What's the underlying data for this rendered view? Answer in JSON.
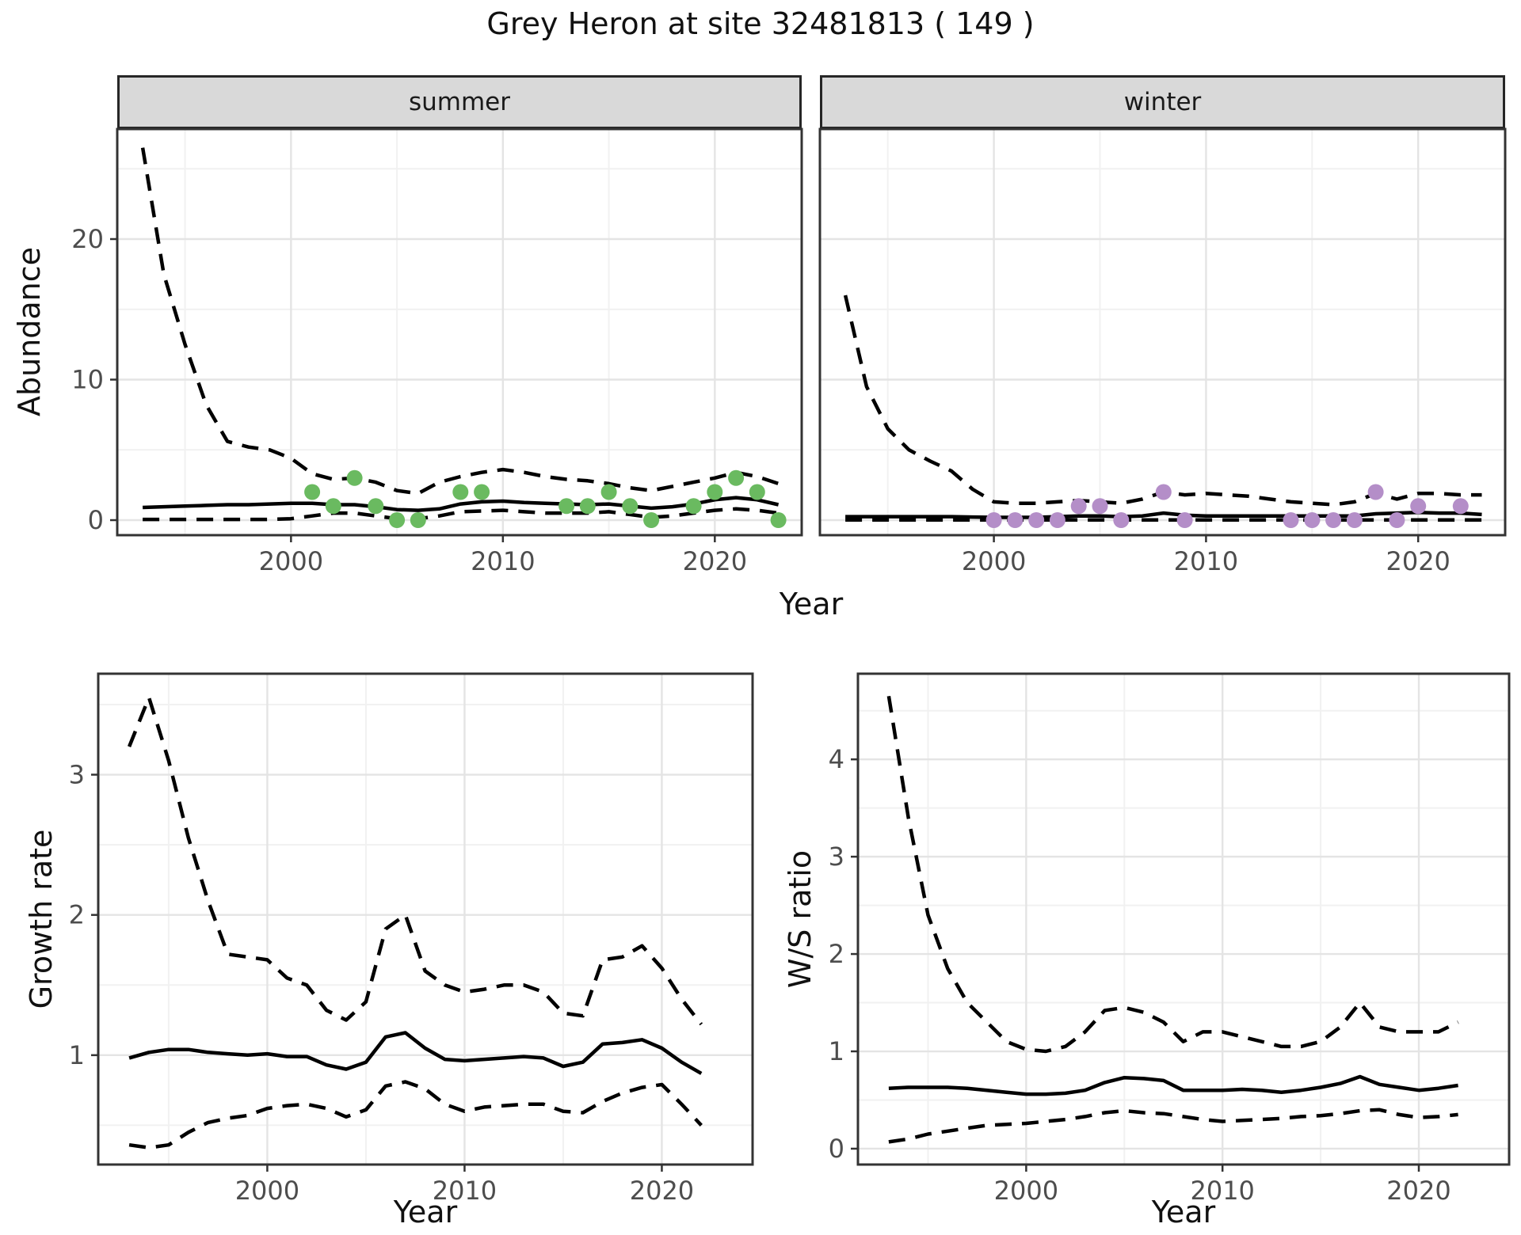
{
  "title": "Grey Heron at site 32481813 ( 149 )",
  "colors": {
    "summer_points": "#6aba60",
    "winter_points": "#b48ec8",
    "line": "#000000",
    "tick_label": "#4d4d4d",
    "axis_tick": "#333333",
    "panel_border": "#333333",
    "strip_bg": "#d9d9d9",
    "grid_major": "#e4e4e4",
    "grid_minor": "#f1f1f1",
    "background": "#ffffff"
  },
  "chart_data": [
    {
      "id": "abundance-summer",
      "type": "line",
      "facet_label": "summer",
      "xlabel": "Year",
      "ylabel": "Abundance",
      "xlim": [
        1991.8,
        2024.1
      ],
      "ylim": [
        -1.07,
        27.83
      ],
      "x_major_ticks": [
        2000,
        2010,
        2020
      ],
      "x_minor_ticks": [
        1995,
        2005,
        2015
      ],
      "x_tick_labels": [
        "2000",
        "2010",
        "2020"
      ],
      "y_major_ticks": [
        0,
        10,
        20
      ],
      "y_minor_ticks": [
        5,
        15,
        25
      ],
      "y_tick_labels": [
        "0",
        "10",
        "20"
      ],
      "show_y_axis": true,
      "grid": true,
      "legend": "none",
      "x": [
        1993,
        1994,
        1995,
        1996,
        1997,
        1998,
        1999,
        2000,
        2001,
        2002,
        2003,
        2004,
        2005,
        2006,
        2007,
        2008,
        2009,
        2010,
        2011,
        2012,
        2013,
        2014,
        2015,
        2016,
        2017,
        2018,
        2019,
        2020,
        2021,
        2022,
        2023
      ],
      "series": [
        {
          "name": "upper 95% CI",
          "style": "dashed",
          "values": [
            26.5,
            17.5,
            12.5,
            8.2,
            5.6,
            5.2,
            5.0,
            4.4,
            3.3,
            2.9,
            3.0,
            2.7,
            2.1,
            1.9,
            2.7,
            3.1,
            3.4,
            3.6,
            3.4,
            3.1,
            2.9,
            2.8,
            2.6,
            2.3,
            2.1,
            2.4,
            2.7,
            3.0,
            3.4,
            3.1,
            2.6
          ]
        },
        {
          "name": "median",
          "style": "solid",
          "values": [
            0.9,
            0.95,
            1.0,
            1.05,
            1.1,
            1.1,
            1.15,
            1.2,
            1.2,
            1.1,
            1.1,
            0.95,
            0.75,
            0.7,
            0.8,
            1.15,
            1.3,
            1.35,
            1.25,
            1.2,
            1.15,
            1.1,
            1.15,
            1.0,
            0.85,
            0.95,
            1.15,
            1.45,
            1.6,
            1.45,
            1.1
          ]
        },
        {
          "name": "lower 95% CI",
          "style": "dashed",
          "values": [
            0.05,
            0.05,
            0.05,
            0.05,
            0.05,
            0.05,
            0.05,
            0.1,
            0.3,
            0.5,
            0.5,
            0.3,
            0.1,
            0.1,
            0.3,
            0.6,
            0.65,
            0.7,
            0.6,
            0.5,
            0.5,
            0.5,
            0.6,
            0.4,
            0.2,
            0.3,
            0.5,
            0.7,
            0.8,
            0.7,
            0.5
          ]
        }
      ],
      "points": {
        "name": "summer observed counts",
        "color": "#6aba60",
        "x": [
          2001,
          2002,
          2003,
          2004,
          2005,
          2006,
          2008,
          2009,
          2013,
          2014,
          2015,
          2016,
          2017,
          2019,
          2020,
          2021,
          2022,
          2023
        ],
        "y": [
          2,
          1,
          3,
          1,
          0,
          0,
          2,
          2,
          1,
          1,
          2,
          1,
          0,
          1,
          2,
          3,
          2,
          0
        ]
      }
    },
    {
      "id": "abundance-winter",
      "type": "line",
      "facet_label": "winter",
      "xlabel": "Year",
      "ylabel": "Abundance",
      "xlim": [
        1991.8,
        2024.1
      ],
      "ylim": [
        -1.07,
        27.83
      ],
      "x_major_ticks": [
        2000,
        2010,
        2020
      ],
      "x_minor_ticks": [
        1995,
        2005,
        2015
      ],
      "x_tick_labels": [
        "2000",
        "2010",
        "2020"
      ],
      "y_major_ticks": [
        0,
        10,
        20
      ],
      "y_minor_ticks": [
        5,
        15,
        25
      ],
      "y_tick_labels": [
        "0",
        "10",
        "20"
      ],
      "show_y_axis": false,
      "grid": true,
      "legend": "none",
      "x": [
        1993,
        1994,
        1995,
        1996,
        1997,
        1998,
        1999,
        2000,
        2001,
        2002,
        2003,
        2004,
        2005,
        2006,
        2007,
        2008,
        2009,
        2010,
        2011,
        2012,
        2013,
        2014,
        2015,
        2016,
        2017,
        2018,
        2019,
        2020,
        2021,
        2022,
        2023
      ],
      "series": [
        {
          "name": "upper 95% CI",
          "style": "dashed",
          "values": [
            16,
            9.5,
            6.5,
            5.0,
            4.2,
            3.5,
            2.2,
            1.3,
            1.2,
            1.2,
            1.3,
            1.4,
            1.3,
            1.2,
            1.5,
            2.0,
            1.8,
            1.9,
            1.8,
            1.7,
            1.5,
            1.3,
            1.2,
            1.1,
            1.3,
            1.9,
            1.5,
            1.9,
            1.9,
            1.8,
            1.8
          ]
        },
        {
          "name": "median",
          "style": "solid",
          "values": [
            0.25,
            0.25,
            0.25,
            0.25,
            0.25,
            0.25,
            0.22,
            0.2,
            0.2,
            0.2,
            0.25,
            0.3,
            0.3,
            0.25,
            0.3,
            0.5,
            0.35,
            0.3,
            0.3,
            0.3,
            0.3,
            0.3,
            0.3,
            0.3,
            0.3,
            0.45,
            0.5,
            0.55,
            0.5,
            0.5,
            0.4
          ]
        },
        {
          "name": "lower 95% CI",
          "style": "dashed",
          "values": [
            0.02,
            0.02,
            0.02,
            0.02,
            0.02,
            0.02,
            0.02,
            0.02,
            0.02,
            0.02,
            0.02,
            0.02,
            0.02,
            0.02,
            0.02,
            0.02,
            0.02,
            0.02,
            0.02,
            0.02,
            0.02,
            0.02,
            0.02,
            0.02,
            0.02,
            0.02,
            0.02,
            0.02,
            0.02,
            0.02,
            0.02
          ]
        }
      ],
      "points": {
        "name": "winter observed counts",
        "color": "#b48ec8",
        "x": [
          2000,
          2001,
          2002,
          2003,
          2004,
          2005,
          2006,
          2008,
          2009,
          2014,
          2015,
          2016,
          2017,
          2018,
          2019,
          2020,
          2022
        ],
        "y": [
          0,
          0,
          0,
          0,
          1,
          1,
          0,
          2,
          0,
          0,
          0,
          0,
          0,
          2,
          0,
          1,
          1
        ]
      }
    },
    {
      "id": "growth-rate",
      "type": "line",
      "facet_label": "",
      "xlabel": "Year",
      "ylabel": "Growth rate",
      "xlim": [
        1991.43,
        2024.6
      ],
      "ylim": [
        0.22,
        3.72
      ],
      "x_major_ticks": [
        2000,
        2010,
        2020
      ],
      "x_minor_ticks": [
        1995,
        2005,
        2015
      ],
      "x_tick_labels": [
        "2000",
        "2010",
        "2020"
      ],
      "y_major_ticks": [
        1,
        2,
        3
      ],
      "y_minor_ticks": [
        0.5,
        1.5,
        2.5,
        3.5
      ],
      "y_tick_labels": [
        "1",
        "2",
        "3"
      ],
      "show_y_axis": true,
      "grid": true,
      "legend": "none",
      "x": [
        1993,
        1994,
        1995,
        1996,
        1997,
        1998,
        1999,
        2000,
        2001,
        2002,
        2003,
        2004,
        2005,
        2006,
        2007,
        2008,
        2009,
        2010,
        2011,
        2012,
        2013,
        2014,
        2015,
        2016,
        2017,
        2018,
        2019,
        2020,
        2021,
        2022
      ],
      "series": [
        {
          "name": "upper 95% CI",
          "style": "dashed",
          "values": [
            3.2,
            3.55,
            3.1,
            2.55,
            2.1,
            1.72,
            1.7,
            1.68,
            1.55,
            1.5,
            1.32,
            1.25,
            1.38,
            1.9,
            2.0,
            1.6,
            1.5,
            1.45,
            1.47,
            1.5,
            1.5,
            1.45,
            1.3,
            1.28,
            1.68,
            1.7,
            1.78,
            1.62,
            1.4,
            1.22
          ]
        },
        {
          "name": "median",
          "style": "solid",
          "values": [
            0.98,
            1.02,
            1.04,
            1.04,
            1.02,
            1.01,
            1.0,
            1.01,
            0.99,
            0.99,
            0.93,
            0.9,
            0.95,
            1.13,
            1.16,
            1.05,
            0.97,
            0.96,
            0.97,
            0.98,
            0.99,
            0.98,
            0.92,
            0.95,
            1.08,
            1.09,
            1.11,
            1.05,
            0.95,
            0.87
          ]
        },
        {
          "name": "lower 95% CI",
          "style": "dashed",
          "values": [
            0.36,
            0.34,
            0.36,
            0.45,
            0.52,
            0.55,
            0.57,
            0.62,
            0.64,
            0.65,
            0.62,
            0.56,
            0.61,
            0.78,
            0.81,
            0.76,
            0.65,
            0.6,
            0.63,
            0.64,
            0.65,
            0.65,
            0.6,
            0.59,
            0.67,
            0.73,
            0.77,
            0.79,
            0.65,
            0.5
          ]
        }
      ],
      "points": null
    },
    {
      "id": "ws-ratio",
      "type": "line",
      "facet_label": "",
      "xlabel": "Year",
      "ylabel": "W/S ratio",
      "xlim": [
        1991.43,
        2024.6
      ],
      "ylim": [
        -0.163,
        4.88
      ],
      "x_major_ticks": [
        2000,
        2010,
        2020
      ],
      "x_minor_ticks": [
        1995,
        2005,
        2015
      ],
      "x_tick_labels": [
        "2000",
        "2010",
        "2020"
      ],
      "y_major_ticks": [
        0,
        1,
        2,
        3,
        4
      ],
      "y_minor_ticks": [
        0.5,
        1.5,
        2.5,
        3.5,
        4.5
      ],
      "y_tick_labels": [
        "0",
        "1",
        "2",
        "3",
        "4"
      ],
      "show_y_axis": true,
      "grid": true,
      "legend": "none",
      "x": [
        1993,
        1994,
        1995,
        1996,
        1997,
        1998,
        1999,
        2000,
        2001,
        2002,
        2003,
        2004,
        2005,
        2006,
        2007,
        2008,
        2009,
        2010,
        2011,
        2012,
        2013,
        2014,
        2015,
        2016,
        2017,
        2018,
        2019,
        2020,
        2021,
        2022
      ],
      "series": [
        {
          "name": "upper 95% CI",
          "style": "dashed",
          "values": [
            4.65,
            3.4,
            2.4,
            1.85,
            1.5,
            1.3,
            1.1,
            1.02,
            1.0,
            1.05,
            1.2,
            1.42,
            1.45,
            1.4,
            1.3,
            1.1,
            1.2,
            1.2,
            1.15,
            1.1,
            1.05,
            1.05,
            1.1,
            1.25,
            1.5,
            1.25,
            1.2,
            1.2,
            1.2,
            1.3
          ]
        },
        {
          "name": "median",
          "style": "solid",
          "values": [
            0.62,
            0.63,
            0.63,
            0.63,
            0.62,
            0.6,
            0.58,
            0.56,
            0.56,
            0.57,
            0.6,
            0.68,
            0.73,
            0.72,
            0.7,
            0.6,
            0.6,
            0.6,
            0.61,
            0.6,
            0.58,
            0.6,
            0.63,
            0.67,
            0.74,
            0.66,
            0.63,
            0.6,
            0.62,
            0.65
          ]
        },
        {
          "name": "lower 95% CI",
          "style": "dashed",
          "values": [
            0.07,
            0.1,
            0.15,
            0.18,
            0.21,
            0.24,
            0.25,
            0.26,
            0.28,
            0.3,
            0.33,
            0.37,
            0.39,
            0.37,
            0.36,
            0.33,
            0.3,
            0.28,
            0.29,
            0.3,
            0.31,
            0.33,
            0.34,
            0.36,
            0.39,
            0.4,
            0.35,
            0.32,
            0.33,
            0.35
          ]
        }
      ],
      "points": null
    }
  ]
}
